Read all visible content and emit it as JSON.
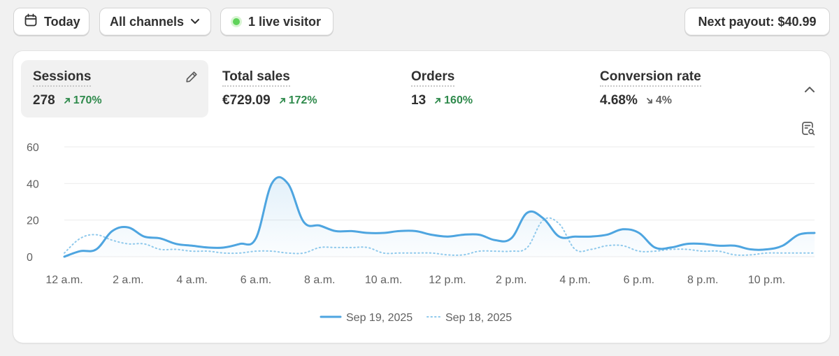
{
  "toolbar": {
    "date_label": "Today",
    "channels_label": "All channels",
    "live_label": "1 live visitor",
    "payout_label": "Next payout: $40.99"
  },
  "metrics": [
    {
      "label": "Sessions",
      "value": "278",
      "delta": "170%",
      "direction": "up"
    },
    {
      "label": "Total sales",
      "value": "€729.09",
      "delta": "172%",
      "direction": "up"
    },
    {
      "label": "Orders",
      "value": "13",
      "delta": "160%",
      "direction": "up"
    },
    {
      "label": "Conversion rate",
      "value": "4.68%",
      "delta": "4%",
      "direction": "down"
    }
  ],
  "colors": {
    "primary_series": "#4ea5e0",
    "comparison_series": "#8fc9ec",
    "positive": "#2f8a4c",
    "live": "#5fd35a"
  },
  "chart_data": {
    "type": "line",
    "title": "Sessions",
    "xlabel": "",
    "ylabel": "",
    "ylim": [
      0,
      60
    ],
    "yticks": [
      "0",
      "20",
      "40",
      "60"
    ],
    "grid": true,
    "legend_position": "bottom-center",
    "x_tick_labels": [
      "12 a.m.",
      "2 a.m.",
      "4 a.m.",
      "6 a.m.",
      "8 a.m.",
      "10 a.m.",
      "12 p.m.",
      "2 p.m.",
      "4 p.m.",
      "6 p.m.",
      "8 p.m.",
      "10 p.m."
    ],
    "x": [
      0,
      0.5,
      1,
      1.5,
      2,
      2.5,
      3,
      3.5,
      4,
      4.5,
      5,
      5.5,
      6,
      6.5,
      7,
      7.5,
      8,
      8.5,
      9,
      9.5,
      10,
      10.5,
      11,
      11.5,
      12,
      12.5,
      13,
      13.5,
      14,
      14.5,
      15,
      15.5,
      16,
      16.5,
      17,
      17.5,
      18,
      18.5,
      19,
      19.5,
      20,
      20.5,
      21,
      21.5,
      22,
      22.5,
      23,
      23.5
    ],
    "series": [
      {
        "name": "Sep 19, 2025",
        "style": "solid",
        "values": [
          0,
          3,
          4,
          14,
          16,
          11,
          10,
          7,
          6,
          5,
          5,
          7,
          10,
          40,
          40,
          19,
          17,
          14,
          14,
          13,
          13,
          14,
          14,
          12,
          11,
          12,
          12,
          9,
          10,
          24,
          21,
          11,
          11,
          11,
          12,
          15,
          13,
          5,
          5,
          7,
          7,
          6,
          6,
          4,
          4,
          6,
          12,
          13
        ]
      },
      {
        "name": "Sep 18, 2025",
        "style": "dotted",
        "values": [
          2,
          10,
          12,
          9,
          7,
          7,
          4,
          4,
          3,
          3,
          2,
          2,
          3,
          3,
          2,
          2,
          5,
          5,
          5,
          5,
          2,
          2,
          2,
          2,
          1,
          1,
          3,
          3,
          3,
          5,
          20,
          18,
          4,
          4,
          6,
          6,
          3,
          3,
          4,
          4,
          3,
          3,
          1,
          1,
          2,
          2,
          2,
          2
        ]
      }
    ]
  }
}
